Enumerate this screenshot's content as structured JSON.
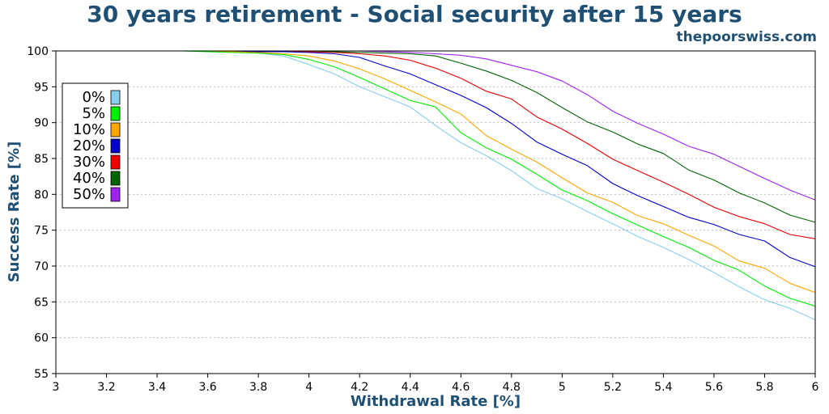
{
  "title": "30 years retirement - Social security after 15 years",
  "watermark": "thepoorswiss.com",
  "colors": {
    "title": "#1f5073",
    "grid": "#bbbbbb"
  },
  "chart_data": {
    "type": "line",
    "title": "30 years retirement - Social security after 15 years",
    "xlabel": "Withdrawal Rate [%]",
    "ylabel": "Success Rate [%]",
    "xlim": [
      3,
      6
    ],
    "ylim": [
      55,
      100
    ],
    "xticks": [
      "3",
      "3.2",
      "3.4",
      "3.6",
      "3.8",
      "4",
      "4.2",
      "4.4",
      "4.6",
      "4.8",
      "5",
      "5.2",
      "5.4",
      "5.6",
      "5.8",
      "6"
    ],
    "yticks": [
      "55",
      "60",
      "65",
      "70",
      "75",
      "80",
      "85",
      "90",
      "95",
      "100"
    ],
    "grid": "horizontal dotted",
    "legend_position": "upper-left",
    "x": [
      3.0,
      3.1,
      3.2,
      3.3,
      3.4,
      3.5,
      3.6,
      3.7,
      3.8,
      3.9,
      4.0,
      4.1,
      4.2,
      4.3,
      4.4,
      4.5,
      4.6,
      4.7,
      4.8,
      4.9,
      5.0,
      5.1,
      5.2,
      5.3,
      5.4,
      5.5,
      5.6,
      5.7,
      5.8,
      5.9,
      6.0
    ],
    "series": [
      {
        "name": "0%",
        "color": "#87ceeb",
        "values": [
          100,
          100,
          100,
          100,
          100,
          100,
          99.9,
          99.8,
          99.7,
          99.3,
          98.1,
          96.8,
          95.0,
          93.6,
          92.2,
          89.6,
          87.2,
          85.4,
          83.3,
          80.8,
          79.4,
          77.6,
          75.9,
          74.1,
          72.6,
          70.9,
          69.1,
          67.1,
          65.3,
          64.1,
          62.5
        ]
      },
      {
        "name": "5%",
        "color": "#00ee00",
        "values": [
          100,
          100,
          100,
          100,
          100,
          100,
          99.9,
          99.8,
          99.7,
          99.5,
          98.8,
          97.8,
          96.3,
          94.7,
          93.1,
          92.2,
          88.6,
          86.5,
          84.9,
          82.8,
          80.6,
          79.1,
          77.3,
          75.7,
          74.1,
          72.6,
          70.8,
          69.4,
          67.2,
          65.5,
          64.4
        ]
      },
      {
        "name": "10%",
        "color": "#ffa500",
        "values": [
          100,
          100,
          100,
          100,
          100,
          100,
          100,
          99.9,
          99.8,
          99.6,
          99.3,
          98.6,
          97.5,
          96.1,
          94.5,
          92.9,
          91.2,
          88.2,
          86.3,
          84.5,
          82.3,
          80.2,
          78.9,
          77.0,
          75.9,
          74.3,
          72.8,
          70.7,
          69.7,
          67.6,
          66.3
        ]
      },
      {
        "name": "20%",
        "color": "#0000cd",
        "values": [
          100,
          100,
          100,
          100,
          100,
          100,
          100,
          100,
          99.9,
          99.9,
          99.8,
          99.6,
          99.1,
          97.9,
          96.8,
          95.3,
          93.8,
          92.1,
          89.9,
          87.3,
          85.6,
          84.0,
          81.5,
          79.8,
          78.3,
          76.8,
          75.8,
          74.4,
          73.5,
          71.2,
          69.9
        ]
      },
      {
        "name": "30%",
        "color": "#ee0000",
        "values": [
          100,
          100,
          100,
          100,
          100,
          100,
          100,
          100,
          100,
          100,
          99.9,
          99.8,
          99.6,
          99.3,
          98.7,
          97.6,
          96.2,
          94.4,
          93.3,
          90.8,
          89.1,
          87.1,
          84.9,
          83.3,
          81.7,
          80.0,
          78.2,
          76.9,
          75.9,
          74.4,
          73.8
        ]
      },
      {
        "name": "40%",
        "color": "#006400",
        "values": [
          100,
          100,
          100,
          100,
          100,
          100,
          100,
          100,
          100,
          100,
          100,
          99.9,
          99.8,
          99.7,
          99.6,
          99.3,
          98.3,
          97.2,
          95.9,
          94.2,
          92.1,
          90.1,
          88.7,
          87.0,
          85.7,
          83.4,
          82.0,
          80.2,
          78.8,
          77.1,
          76.1
        ]
      },
      {
        "name": "50%",
        "color": "#a020f0",
        "values": [
          100,
          100,
          100,
          100,
          100,
          100,
          100,
          100,
          100,
          100,
          100,
          100,
          100,
          99.9,
          99.8,
          99.6,
          99.4,
          98.9,
          98.0,
          97.1,
          95.8,
          93.9,
          91.6,
          89.9,
          88.4,
          86.7,
          85.6,
          83.9,
          82.2,
          80.6,
          79.2
        ]
      }
    ]
  }
}
